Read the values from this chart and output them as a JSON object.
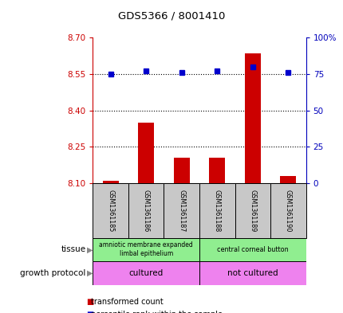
{
  "title": "GDS5366 / 8001410",
  "samples": [
    "GSM1361185",
    "GSM1361186",
    "GSM1361187",
    "GSM1361188",
    "GSM1361189",
    "GSM1361190"
  ],
  "red_values": [
    8.11,
    8.35,
    8.205,
    8.205,
    8.635,
    8.13
  ],
  "blue_values": [
    75,
    77,
    76,
    77,
    80,
    76
  ],
  "ylim_left": [
    8.1,
    8.7
  ],
  "ylim_right": [
    0,
    100
  ],
  "yticks_left": [
    8.1,
    8.25,
    8.4,
    8.55,
    8.7
  ],
  "yticks_right": [
    0,
    25,
    50,
    75,
    100
  ],
  "hlines": [
    8.25,
    8.4,
    8.55
  ],
  "tissue_labels": [
    "amniotic membrane expanded\nlimbal epithelium",
    "central corneal button"
  ],
  "protocol_labels": [
    "cultured",
    "not cultured"
  ],
  "tissue_color": "#90ee90",
  "protocol_color": "#ee82ee",
  "bar_color": "#cc0000",
  "dot_color": "#0000cc",
  "title_color": "#000000",
  "left_axis_color": "#cc0000",
  "right_axis_color": "#0000bb",
  "sample_box_color": "#c8c8c8"
}
